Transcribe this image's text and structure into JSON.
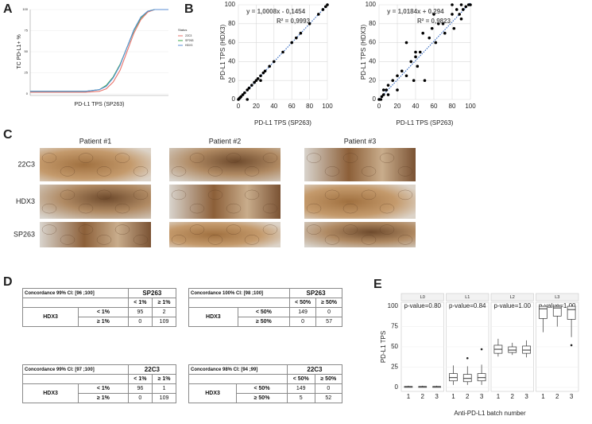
{
  "panels": [
    "A",
    "B",
    "C",
    "D",
    "E"
  ],
  "chart_data": [
    {
      "type": "line",
      "y_label": "TC PD-L1+ %",
      "x_label": "PD-L1 TPS (SP263)",
      "legend_title": "Status",
      "legend": "right",
      "x": [
        0,
        10,
        20,
        30,
        40,
        50,
        55,
        60,
        65,
        70,
        75,
        80,
        85,
        90,
        100
      ],
      "xlim": [
        0,
        100
      ],
      "ylim": [
        0,
        100
      ],
      "yticks": [
        0,
        25,
        50,
        75,
        100
      ],
      "grid": true,
      "series": [
        {
          "name": "22C3",
          "color": "#e8736c",
          "values": [
            2,
            2,
            2,
            2,
            2,
            3,
            6,
            14,
            28,
            50,
            72,
            88,
            97,
            100,
            100
          ]
        },
        {
          "name": "SP263",
          "color": "#3aa845",
          "values": [
            3,
            3,
            3,
            3,
            3,
            5,
            10,
            20,
            35,
            55,
            75,
            90,
            98,
            100,
            100
          ]
        },
        {
          "name": "HDX3",
          "color": "#5b8fd6",
          "values": [
            3,
            3,
            3,
            3,
            3,
            5,
            9,
            19,
            34,
            55,
            76,
            91,
            98,
            100,
            100
          ]
        }
      ]
    },
    {
      "type": "scatter",
      "x_label": "PD-L1 TPS (SP263)",
      "y_label": "PD-L1 TPS (HDX3)",
      "annotations": [
        "y = 1,0008x - 0,1454",
        "R² = 0,9993"
      ],
      "trendline": {
        "slope": 1.0008,
        "intercept": -0.1454
      },
      "xlim": [
        0,
        100
      ],
      "ylim": [
        0,
        100
      ],
      "xticks": [
        0,
        20,
        40,
        60,
        80,
        100
      ],
      "yticks": [
        0,
        20,
        40,
        60,
        80,
        100
      ],
      "grid": true,
      "color": "#000000",
      "x": [
        0,
        1,
        2,
        3,
        5,
        7,
        10,
        12,
        15,
        18,
        20,
        22,
        25,
        28,
        30,
        35,
        40,
        50,
        60,
        65,
        70,
        80,
        90,
        95,
        98,
        100,
        25,
        10
      ],
      "values": [
        0,
        1,
        2,
        3,
        5,
        7,
        10,
        12,
        15,
        18,
        20,
        22,
        25,
        28,
        30,
        35,
        40,
        50,
        60,
        65,
        70,
        80,
        90,
        95,
        98,
        100,
        20,
        0
      ]
    },
    {
      "type": "scatter",
      "x_label": "PD-L1 TPS (SP263)",
      "y_label": "PD-L1 TPS (HDX3)",
      "annotations": [
        "y = 1,0184x + 0,294",
        "R² = 0,9823"
      ],
      "trendline": {
        "slope": 1.0184,
        "intercept": 0.294
      },
      "xlim": [
        0,
        100
      ],
      "ylim": [
        0,
        100
      ],
      "xticks": [
        0,
        20,
        40,
        60,
        80,
        100
      ],
      "yticks": [
        0,
        20,
        40,
        60,
        80,
        100
      ],
      "grid": true,
      "color": "#000000",
      "x": [
        0,
        2,
        3,
        5,
        5,
        8,
        10,
        10,
        15,
        20,
        20,
        25,
        30,
        30,
        35,
        38,
        40,
        40,
        42,
        45,
        48,
        50,
        55,
        58,
        60,
        62,
        65,
        70,
        72,
        80,
        82,
        85,
        88,
        90,
        92,
        95,
        98,
        100,
        80,
        90
      ],
      "values": [
        0,
        0,
        3,
        5,
        10,
        10,
        5,
        15,
        20,
        10,
        25,
        30,
        25,
        60,
        40,
        20,
        45,
        50,
        35,
        50,
        70,
        20,
        65,
        75,
        90,
        60,
        80,
        80,
        70,
        90,
        75,
        95,
        90,
        100,
        95,
        98,
        100,
        100,
        100,
        85
      ]
    },
    {
      "type": "box",
      "x_label": "Anti-PD-L1 batch number",
      "y_label": "PD-L1 TPS",
      "categories": [
        "1",
        "2",
        "3"
      ],
      "ylim": [
        -5,
        105
      ],
      "yticks": [
        0,
        25,
        50,
        75,
        100
      ],
      "grid": true,
      "facets": [
        {
          "name": "L0",
          "annotation": "p-value=0.80",
          "boxes": [
            {
              "min": 0,
              "q1": 0,
              "median": 1,
              "q3": 1,
              "max": 2
            },
            {
              "min": 0,
              "q1": 0,
              "median": 1,
              "q3": 1,
              "max": 2
            },
            {
              "min": 0,
              "q1": 0,
              "median": 1,
              "q3": 1,
              "max": 2
            }
          ]
        },
        {
          "name": "L1",
          "annotation": "p-value=0.84",
          "boxes": [
            {
              "min": 3,
              "q1": 8,
              "median": 12,
              "q3": 17,
              "max": 27
            },
            {
              "min": 3,
              "q1": 7,
              "median": 11,
              "q3": 16,
              "max": 26,
              "outliers": [
                36
              ]
            },
            {
              "min": 3,
              "q1": 8,
              "median": 12,
              "q3": 17,
              "max": 28,
              "outliers": [
                47
              ]
            }
          ]
        },
        {
          "name": "L2",
          "annotation": "p-value=1.00",
          "boxes": [
            {
              "min": 38,
              "q1": 42,
              "median": 47,
              "q3": 52,
              "max": 60
            },
            {
              "min": 40,
              "q1": 43,
              "median": 46,
              "q3": 50,
              "max": 55
            },
            {
              "min": 37,
              "q1": 42,
              "median": 46,
              "q3": 51,
              "max": 58
            }
          ]
        },
        {
          "name": "L3",
          "annotation": "p-value=1.00",
          "boxes": [
            {
              "min": 68,
              "q1": 85,
              "median": 97,
              "q3": 100,
              "max": 100
            },
            {
              "min": 75,
              "q1": 88,
              "median": 98,
              "q3": 100,
              "max": 100
            },
            {
              "min": 62,
              "q1": 84,
              "median": 96,
              "q3": 100,
              "max": 100,
              "outliers": [
                52
              ]
            }
          ]
        }
      ]
    }
  ],
  "images": {
    "columns": [
      "Patient #1",
      "Patient #2",
      "Patient #3"
    ],
    "rows": [
      "22C3",
      "HDX3",
      "SP263"
    ]
  },
  "tables": [
    {
      "title": "Concordance 99% CI: [96 ;100]",
      "header": "SP263",
      "row_header": "HDX3",
      "columns": [
        "< 1%",
        "≥ 1%"
      ],
      "rows": [
        {
          "label": "< 1%",
          "values": [
            95,
            2
          ]
        },
        {
          "label": "≥ 1%",
          "values": [
            0,
            109
          ]
        }
      ]
    },
    {
      "title": "Concordance 100% CI: [98 ;100]",
      "header": "SP263",
      "row_header": "HDX3",
      "columns": [
        "< 50%",
        "≥ 50%"
      ],
      "rows": [
        {
          "label": "< 50%",
          "values": [
            149,
            0
          ]
        },
        {
          "label": "≥ 50%",
          "values": [
            0,
            57
          ]
        }
      ]
    },
    {
      "title": "Concordance 99% CI: [97 ;100]",
      "header": "22C3",
      "row_header": "HDX3",
      "columns": [
        "< 1%",
        "≥ 1%"
      ],
      "rows": [
        {
          "label": "< 1%",
          "values": [
            96,
            1
          ]
        },
        {
          "label": "≥ 1%",
          "values": [
            0,
            109
          ]
        }
      ]
    },
    {
      "title": "Concordance 98% CI: [94 ;99]",
      "header": "22C3",
      "row_header": "HDX3",
      "columns": [
        "< 50%",
        "≥ 50%"
      ],
      "rows": [
        {
          "label": "< 50%",
          "values": [
            149,
            0
          ]
        },
        {
          "label": "≥ 50%",
          "values": [
            5,
            52
          ]
        }
      ]
    }
  ]
}
